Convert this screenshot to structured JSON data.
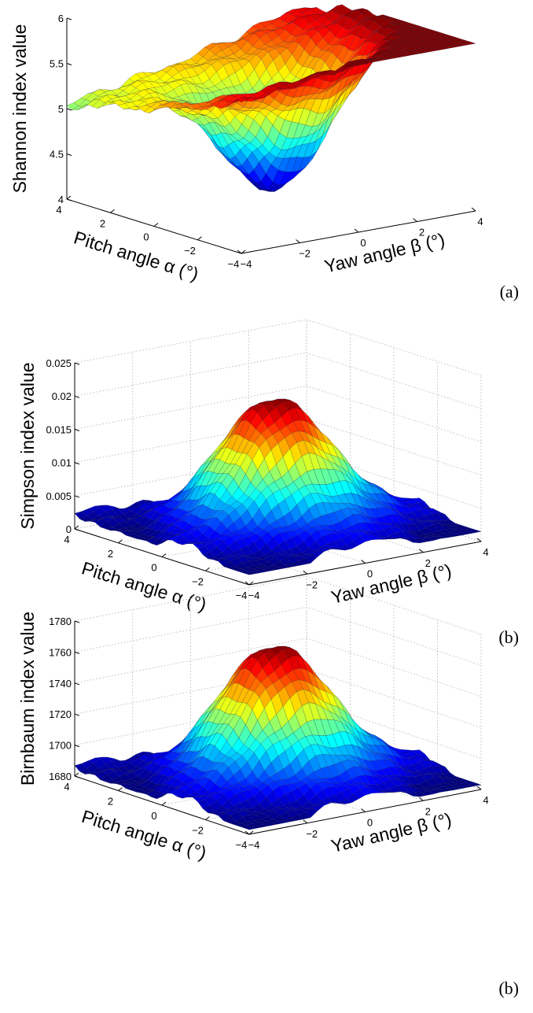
{
  "chart_data": [
    {
      "type": "surface",
      "shape": "saddle",
      "zlabel": "Shannon index value",
      "xlabel": "Yaw angle β (°)",
      "ylabel": "Pitch angle α (°)",
      "xlim": [
        -4,
        4
      ],
      "ylim": [
        -4,
        4
      ],
      "zlim": [
        4,
        6
      ],
      "xticks": [
        "−4",
        "−2",
        "0",
        "2",
        "4"
      ],
      "yticks": [
        "−4",
        "−2",
        "0",
        "2",
        "4"
      ],
      "zticks": [
        "4",
        "4.5",
        "5",
        "5.5",
        "6"
      ],
      "zmin_value": 4.15,
      "zmax_value": 5.85,
      "corner_values": {
        "alpha_high": 5.6,
        "beta_high": 5.25,
        "center": 4.15,
        "far": 5.85
      },
      "grid": false,
      "panel_label": "(a)"
    },
    {
      "type": "surface",
      "shape": "peak",
      "zlabel": "Simpson index value",
      "xlabel": "Yaw angle β (°)",
      "ylabel": "Pitch angle α (°)",
      "xlim": [
        -4,
        4
      ],
      "ylim": [
        -4,
        4
      ],
      "zlim": [
        0,
        0.025
      ],
      "xticks": [
        "−4",
        "−2",
        "0",
        "2",
        "4"
      ],
      "yticks": [
        "−4",
        "−2",
        "0",
        "2",
        "4"
      ],
      "zticks": [
        "0",
        "0.005",
        "0.01",
        "0.015",
        "0.02",
        "0.025"
      ],
      "zmin_value": 0.0015,
      "zmax_value": 0.0205,
      "grid": true,
      "panel_label": "(b)"
    },
    {
      "type": "surface",
      "shape": "peak",
      "zlabel": "Birnbaum index value",
      "xlabel": "Yaw angle β (°)",
      "ylabel": "Pitch angle α (°)",
      "xlim": [
        -4,
        4
      ],
      "ylim": [
        -4,
        4
      ],
      "zlim": [
        1680,
        1780
      ],
      "xticks": [
        "−4",
        "−2",
        "0",
        "2",
        "4"
      ],
      "yticks": [
        "−4",
        "−2",
        "0",
        "2",
        "4"
      ],
      "zticks": [
        "1680",
        "1700",
        "1720",
        "1740",
        "1760",
        "1780"
      ],
      "zmin_value": 1683,
      "zmax_value": 1768,
      "grid": true,
      "panel_label": "(b)"
    }
  ]
}
